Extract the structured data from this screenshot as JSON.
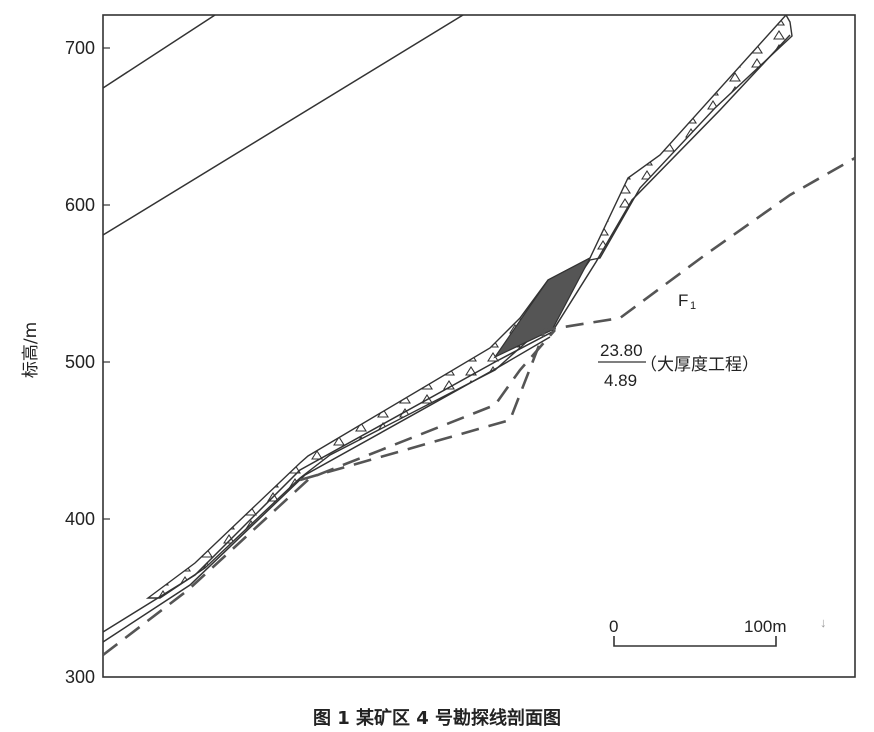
{
  "figure": {
    "caption": "图 1    某矿区 4 号勘探线剖面图",
    "y_axis": {
      "label": "标高/m",
      "ticks": [
        "700",
        "600",
        "500",
        "400",
        "300"
      ]
    },
    "fault_label": "F",
    "fault_sub": "1",
    "ore_annotation": {
      "numerator": "23.80",
      "denominator": "4.89",
      "note": "（大厚度工程）"
    },
    "scale_bar": {
      "start_label": "0",
      "end_label": "100m"
    },
    "stray_mark": "↓"
  }
}
